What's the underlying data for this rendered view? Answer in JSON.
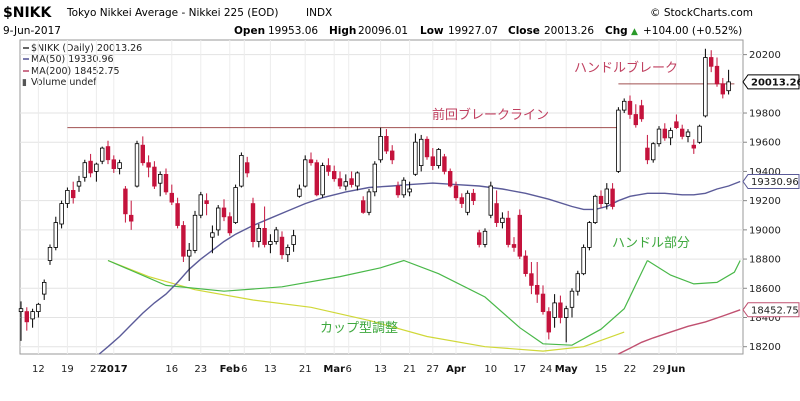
{
  "header": {
    "symbol": "$NIKK",
    "name": "Tokyo Nikkei Average - Nikkei 225 (EOD)",
    "exchange": "INDX",
    "brand": "© StockCharts.com",
    "date": "9-Jun-2017",
    "open_label": "Open",
    "open": "19953.06",
    "high_label": "High",
    "high": "20096.01",
    "low_label": "Low",
    "low": "19927.07",
    "close_label": "Close",
    "close": "20013.26",
    "chg_label": "Chg",
    "chg": "+104.00 (+0.52%)",
    "chg_arrow": "▲"
  },
  "legend": {
    "price": "$NIKK (Daily) 20013.26",
    "ma50": "MA(50) 19330.96",
    "ma200": "MA(200) 18452.75",
    "volume": "Volume undef"
  },
  "annotations": {
    "handle_break": "ハンドルブレーク",
    "prev_break_line": "前回ブレークライン",
    "handle_part": "ハンドル部分",
    "cup_adjust": "カップ型調整"
  },
  "colors": {
    "up": "#000000",
    "down": "#c4133c",
    "ma50": "#5b5b99",
    "ma200": "#c05070",
    "annotation_line": "#a05050",
    "cup_green": "#49b849",
    "cup_yellow": "#d0d838",
    "annotation_text_red": "#c04060",
    "annotation_text_green": "#3ea83e"
  },
  "chart_data": {
    "type": "candlestick",
    "ylim": [
      18150,
      20300
    ],
    "y_ticks": [
      "20200",
      "19800",
      "19600",
      "19400",
      "19200",
      "19000",
      "18800",
      "18600",
      "18400",
      "18200"
    ],
    "y_tick_values": [
      20200,
      19800,
      19600,
      19400,
      19200,
      19000,
      18800,
      18600,
      18400,
      18200
    ],
    "y_badges": [
      "20013.26",
      "19330.96",
      "18452.75"
    ],
    "y_badge_values": [
      20013.26,
      19330.96,
      18452.75
    ],
    "x_ticks": [
      "12",
      "19",
      "27",
      "2017",
      "16",
      "23",
      "Feb",
      "6",
      "13",
      "21",
      "Mar",
      "6",
      "13",
      "21",
      "27",
      "Apr",
      "10",
      "17",
      "24",
      "May",
      "15",
      "22",
      "29",
      "Jun"
    ],
    "x_tick_index": [
      3,
      8,
      13,
      16,
      26,
      31,
      36,
      38.5,
      43,
      49,
      54,
      56.5,
      62,
      67,
      71,
      75,
      81,
      86,
      90.5,
      94,
      100,
      105,
      110,
      113
    ],
    "x_tick_bold": [
      false,
      false,
      false,
      true,
      false,
      false,
      true,
      false,
      false,
      false,
      true,
      false,
      false,
      false,
      false,
      true,
      false,
      false,
      false,
      true,
      false,
      false,
      false,
      true
    ],
    "candles": [
      [
        18440,
        18510,
        18240,
        18460
      ],
      [
        18440,
        18470,
        18310,
        18370
      ],
      [
        18390,
        18460,
        18330,
        18440
      ],
      [
        18440,
        18500,
        18400,
        18490
      ],
      [
        18560,
        18660,
        18520,
        18640
      ],
      [
        18790,
        18900,
        18760,
        18880
      ],
      [
        18880,
        19090,
        18860,
        19050
      ],
      [
        19040,
        19200,
        19010,
        19180
      ],
      [
        19180,
        19290,
        19150,
        19270
      ],
      [
        19270,
        19330,
        19180,
        19220
      ],
      [
        19300,
        19370,
        19260,
        19330
      ],
      [
        19360,
        19480,
        19330,
        19460
      ],
      [
        19470,
        19520,
        19360,
        19390
      ],
      [
        19400,
        19460,
        19330,
        19450
      ],
      [
        19470,
        19570,
        19450,
        19560
      ],
      [
        19570,
        19610,
        19450,
        19480
      ],
      [
        19480,
        19510,
        19390,
        19420
      ],
      [
        19420,
        19480,
        19380,
        19460
      ],
      [
        19280,
        19300,
        19050,
        19110
      ],
      [
        19100,
        19200,
        19000,
        19060
      ],
      [
        19300,
        19610,
        19290,
        19590
      ],
      [
        19580,
        19640,
        19440,
        19460
      ],
      [
        19460,
        19510,
        19360,
        19430
      ],
      [
        19430,
        19470,
        19280,
        19300
      ],
      [
        19320,
        19400,
        19230,
        19380
      ],
      [
        19380,
        19420,
        19240,
        19260
      ],
      [
        19250,
        19310,
        19170,
        19190
      ],
      [
        19180,
        19220,
        19010,
        19030
      ],
      [
        19030,
        19060,
        18780,
        18820
      ],
      [
        18820,
        18910,
        18650,
        18860
      ],
      [
        18860,
        19130,
        18840,
        19100
      ],
      [
        19100,
        19260,
        19080,
        19240
      ],
      [
        19200,
        19250,
        19100,
        19180
      ],
      [
        18950,
        19030,
        18840,
        18980
      ],
      [
        19000,
        19170,
        18960,
        19150
      ],
      [
        19150,
        19210,
        19060,
        19090
      ],
      [
        19090,
        19120,
        18960,
        18980
      ],
      [
        19050,
        19310,
        19040,
        19290
      ],
      [
        19300,
        19530,
        19290,
        19510
      ],
      [
        19460,
        19500,
        19360,
        19390
      ],
      [
        19180,
        19220,
        18880,
        18920
      ],
      [
        18920,
        19040,
        18880,
        19010
      ],
      [
        19010,
        19160,
        18880,
        18900
      ],
      [
        18900,
        18970,
        18840,
        18920
      ],
      [
        18920,
        19020,
        18900,
        19000
      ],
      [
        18950,
        18990,
        18800,
        18830
      ],
      [
        18830,
        18900,
        18780,
        18880
      ],
      [
        18900,
        19000,
        18850,
        18960
      ],
      [
        19230,
        19310,
        19220,
        19280
      ],
      [
        19300,
        19510,
        19290,
        19480
      ],
      [
        19480,
        19530,
        19440,
        19460
      ],
      [
        19460,
        19480,
        19230,
        19240
      ],
      [
        19240,
        19460,
        19220,
        19440
      ],
      [
        19440,
        19490,
        19370,
        19400
      ],
      [
        19400,
        19440,
        19330,
        19350
      ],
      [
        19350,
        19400,
        19280,
        19300
      ],
      [
        19300,
        19380,
        19270,
        19330
      ],
      [
        19350,
        19400,
        19290,
        19310
      ],
      [
        19300,
        19400,
        19270,
        19390
      ],
      [
        19200,
        19230,
        19110,
        19120
      ],
      [
        19120,
        19280,
        19100,
        19260
      ],
      [
        19260,
        19470,
        19230,
        19450
      ],
      [
        19480,
        19700,
        19460,
        19640
      ],
      [
        19640,
        19690,
        19520,
        19540
      ],
      [
        19540,
        19580,
        19450,
        19480
      ],
      [
        19300,
        19330,
        19220,
        19240
      ],
      [
        19240,
        19360,
        19220,
        19340
      ],
      [
        19260,
        19330,
        19230,
        19280
      ],
      [
        19380,
        19660,
        19370,
        19600
      ],
      [
        19440,
        19650,
        19400,
        19620
      ],
      [
        19620,
        19640,
        19480,
        19500
      ],
      [
        19500,
        19560,
        19410,
        19440
      ],
      [
        19440,
        19560,
        19420,
        19550
      ],
      [
        19500,
        19520,
        19380,
        19400
      ],
      [
        19400,
        19420,
        19290,
        19300
      ],
      [
        19300,
        19330,
        19200,
        19220
      ],
      [
        19220,
        19250,
        19150,
        19180
      ],
      [
        19120,
        19270,
        19100,
        19250
      ],
      [
        19250,
        19280,
        19170,
        19200
      ],
      [
        18980,
        19000,
        18880,
        18900
      ],
      [
        18900,
        19010,
        18880,
        18990
      ],
      [
        19100,
        19330,
        19080,
        19300
      ],
      [
        19180,
        19270,
        19020,
        19050
      ],
      [
        19050,
        19120,
        19010,
        19080
      ],
      [
        19080,
        19130,
        18880,
        18900
      ],
      [
        18900,
        18950,
        18850,
        18880
      ],
      [
        19100,
        19140,
        18800,
        18820
      ],
      [
        18820,
        18860,
        18680,
        18700
      ],
      [
        18700,
        18780,
        18560,
        18620
      ],
      [
        18620,
        18780,
        18500,
        18560
      ],
      [
        18560,
        18620,
        18420,
        18440
      ],
      [
        18440,
        18470,
        18250,
        18300
      ],
      [
        18400,
        18560,
        18330,
        18500
      ],
      [
        18500,
        18550,
        18360,
        18400
      ],
      [
        18400,
        18480,
        18230,
        18460
      ],
      [
        18470,
        18600,
        18400,
        18580
      ],
      [
        18580,
        18720,
        18550,
        18700
      ],
      [
        18700,
        18900,
        18690,
        18880
      ],
      [
        18880,
        19060,
        18860,
        19050
      ],
      [
        19050,
        19240,
        19040,
        19230
      ],
      [
        19230,
        19270,
        19150,
        19180
      ],
      [
        19180,
        19320,
        19140,
        19280
      ],
      [
        19280,
        19320,
        19140,
        19160
      ],
      [
        19400,
        19840,
        19390,
        19820
      ],
      [
        19820,
        19900,
        19800,
        19880
      ],
      [
        19880,
        19920,
        19760,
        19790
      ],
      [
        19790,
        19860,
        19700,
        19720
      ],
      [
        19850,
        19890,
        19740,
        19760
      ],
      [
        19560,
        19650,
        19450,
        19480
      ],
      [
        19480,
        19600,
        19460,
        19590
      ],
      [
        19590,
        19710,
        19570,
        19690
      ],
      [
        19690,
        19730,
        19610,
        19630
      ],
      [
        19630,
        19700,
        19580,
        19680
      ],
      [
        19740,
        19790,
        19690,
        19700
      ],
      [
        19690,
        19720,
        19620,
        19640
      ],
      [
        19640,
        19690,
        19600,
        19670
      ],
      [
        19580,
        19620,
        19520,
        19560
      ],
      [
        19600,
        19720,
        19590,
        19710
      ],
      [
        19780,
        20240,
        19770,
        20180
      ],
      [
        20180,
        20230,
        20080,
        20120
      ],
      [
        20120,
        20180,
        19980,
        20000
      ],
      [
        20000,
        20040,
        19900,
        19930
      ],
      [
        19953.06,
        20096.01,
        19927.07,
        20013.26
      ]
    ],
    "ma50": [
      [
        13.5,
        18150
      ],
      [
        15,
        18200
      ],
      [
        17,
        18270
      ],
      [
        19,
        18350
      ],
      [
        21,
        18430
      ],
      [
        23,
        18500
      ],
      [
        25,
        18560
      ],
      [
        27,
        18640
      ],
      [
        29,
        18730
      ],
      [
        31,
        18800
      ],
      [
        33,
        18860
      ],
      [
        35,
        18920
      ],
      [
        37,
        18970
      ],
      [
        40,
        19030
      ],
      [
        43,
        19080
      ],
      [
        46,
        19130
      ],
      [
        49,
        19180
      ],
      [
        52,
        19220
      ],
      [
        56,
        19260
      ],
      [
        60,
        19290
      ],
      [
        64,
        19300
      ],
      [
        67,
        19310
      ],
      [
        71,
        19320
      ],
      [
        75,
        19310
      ],
      [
        79,
        19300
      ],
      [
        83,
        19280
      ],
      [
        87,
        19250
      ],
      [
        91,
        19210
      ],
      [
        95,
        19160
      ],
      [
        97,
        19140
      ],
      [
        99,
        19140
      ],
      [
        101,
        19160
      ],
      [
        103,
        19200
      ],
      [
        105,
        19230
      ],
      [
        108,
        19250
      ],
      [
        111,
        19250
      ],
      [
        114,
        19240
      ],
      [
        116,
        19240
      ],
      [
        118,
        19250
      ],
      [
        120,
        19280
      ],
      [
        122,
        19300
      ],
      [
        124,
        19330.96
      ]
    ],
    "ma200": [
      [
        103,
        18150
      ],
      [
        105,
        18190
      ],
      [
        107,
        18230
      ],
      [
        109,
        18260
      ],
      [
        112,
        18300
      ],
      [
        115,
        18340
      ],
      [
        118,
        18370
      ],
      [
        121,
        18410
      ],
      [
        124,
        18452.75
      ]
    ],
    "guide_lines": {
      "prev_break": {
        "x0": 8,
        "x1": 103,
        "y": 19700
      },
      "handle_break": {
        "x0": 103,
        "x1": 123,
        "y": 20000
      }
    }
  }
}
